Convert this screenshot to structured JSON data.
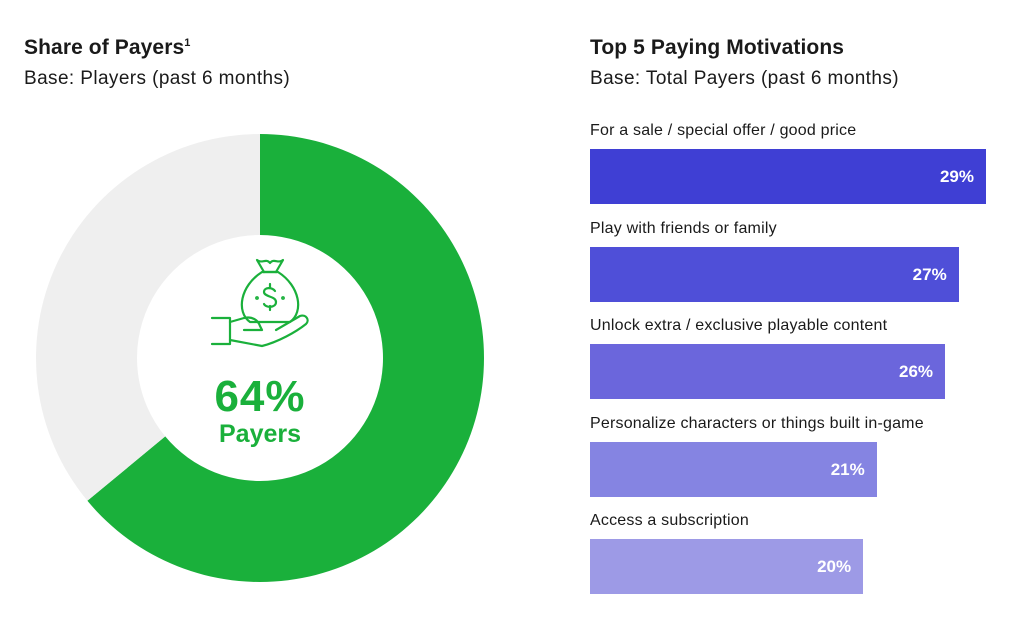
{
  "chart_data": [
    {
      "type": "pie",
      "title": "Share of Payers",
      "title_footnote": "1",
      "subtitle": "Base: Players (past 6 months)",
      "slices": [
        {
          "label": "Payers",
          "value": 64,
          "color": "#1ab03b"
        },
        {
          "label": "",
          "value": 36,
          "color": "#efefef"
        }
      ],
      "center_value": "64%",
      "center_label": "Payers",
      "center_icon": "money-bag-hand-icon"
    },
    {
      "type": "bar",
      "orientation": "horizontal",
      "title": "Top 5 Paying Motivations",
      "subtitle": "Base: Total Payers (past 6 months)",
      "categories": [
        "For a sale / special offer / good price",
        "Play with friends or family",
        "Unlock extra / exclusive playable content",
        "Personalize characters or things built in-game",
        "Access a subscription"
      ],
      "values": [
        29,
        27,
        26,
        21,
        20
      ],
      "value_labels": [
        "29%",
        "27%",
        "26%",
        "21%",
        "20%"
      ],
      "unit": "%",
      "xlim": [
        0,
        29
      ],
      "bar_colors": [
        "#3f3fd4",
        "#4f4fd8",
        "#6b66dc",
        "#8584e2",
        "#9d9ae6"
      ],
      "legend": "none",
      "grid": false
    }
  ]
}
